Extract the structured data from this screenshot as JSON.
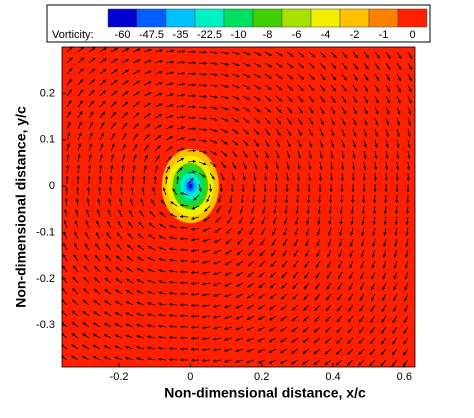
{
  "chart_data": {
    "type": "contour",
    "colorbar": {
      "label": "Vorticity:",
      "levels": [
        -60,
        -47.5,
        -35,
        -22.5,
        -10,
        -8,
        -6,
        -4,
        -2,
        -1,
        0
      ],
      "colors": [
        "#0000d0",
        "#0060ff",
        "#00c0ff",
        "#00f0c8",
        "#00e060",
        "#40d000",
        "#a8e000",
        "#f0f000",
        "#ffc000",
        "#ff8000",
        "#ff2000"
      ]
    },
    "xlabel": "Non-dimensional distance, x/c",
    "ylabel": "Non-dimensional distance, y/c",
    "xlim": [
      -0.36,
      0.63
    ],
    "ylim": [
      -0.39,
      0.3
    ],
    "xticks": [
      -0.2,
      0,
      0.2,
      0.4,
      0.6
    ],
    "yticks": [
      0.2,
      0.1,
      0,
      -0.1,
      -0.2,
      -0.3
    ],
    "background_level": 0,
    "vortex": {
      "x": 0,
      "y": 0
    },
    "contours": [
      {
        "level": -2,
        "radius": 0.08
      },
      {
        "level": -4,
        "radius": 0.065
      },
      {
        "level": -8,
        "radius": 0.05
      },
      {
        "level": -10,
        "radius": 0.04
      },
      {
        "level": -22.5,
        "radius": 0.028
      },
      {
        "level": -35,
        "radius": 0.018
      },
      {
        "level": -47.5,
        "radius": 0.011
      },
      {
        "level": -60,
        "radius": 0.005
      }
    ]
  }
}
